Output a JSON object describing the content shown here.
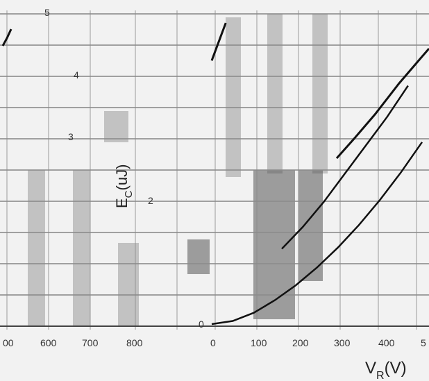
{
  "chart_data": {
    "type": "line",
    "xlabel_main": "V",
    "xlabel_sub": "R",
    "xlabel_unit": "(V)",
    "ylabel_main": "E",
    "ylabel_sub": "C",
    "ylabel_unit": "(uJ)",
    "x_tick_labels_left": [
      "00",
      "600",
      "700",
      "800"
    ],
    "x_tick_labels_right": [
      "0",
      "100",
      "200",
      "300",
      "400",
      "5"
    ],
    "y_tick_labels": [
      "0",
      "2",
      "3",
      "4",
      "5"
    ],
    "xlim": [
      0,
      600
    ],
    "ylim": [
      0,
      5
    ],
    "grid": true,
    "series": [
      {
        "x": [
          0,
          60,
          120,
          180,
          240,
          300,
          360,
          420,
          480,
          540,
          600
        ],
        "y": [
          0,
          0.05,
          0.18,
          0.38,
          0.62,
          0.9,
          1.22,
          1.58,
          1.98,
          2.42,
          2.9
        ]
      },
      {
        "x": [
          200,
          260,
          320,
          380,
          440,
          500,
          560
        ],
        "y": [
          1.2,
          1.55,
          1.95,
          2.4,
          2.85,
          3.3,
          3.8
        ]
      },
      {
        "x": [
          0,
          20,
          40
        ],
        "y": [
          4.2,
          4.5,
          4.8
        ]
      }
    ]
  },
  "colors": {
    "curve": "#111111",
    "grid": "#8c8c8c",
    "bar_dark": "#555555",
    "bar_mid": "#9a9a9a"
  }
}
